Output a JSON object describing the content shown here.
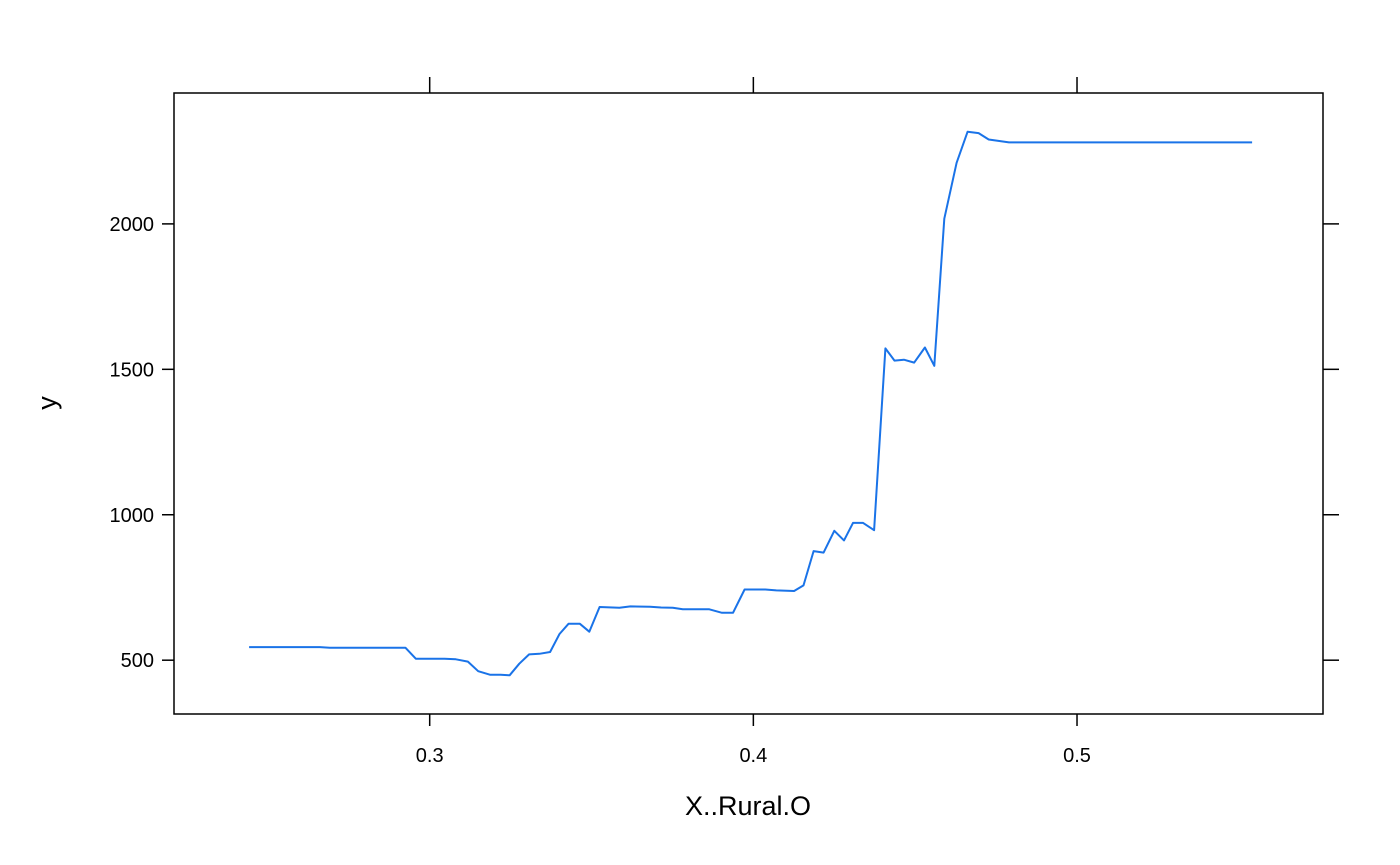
{
  "chart_data": {
    "type": "line",
    "title": "",
    "xlabel": "X..Rural.O",
    "ylabel": "y",
    "xlim": [
      0.221,
      0.576
    ],
    "ylim": [
      315,
      2450
    ],
    "x_ticks": [
      0.3,
      0.4,
      0.5
    ],
    "x_tick_labels": [
      "0.3",
      "0.4",
      "0.5"
    ],
    "y_ticks": [
      500,
      1000,
      1500,
      2000
    ],
    "y_tick_labels": [
      "500",
      "1000",
      "1500",
      "2000"
    ],
    "grid": false,
    "legend": "none",
    "line_color": "#1a73e8",
    "series": [
      {
        "x": [
          0.2442,
          0.2598,
          0.2661,
          0.2691,
          0.2775,
          0.2821,
          0.2925,
          0.2957,
          0.3046,
          0.3081,
          0.3118,
          0.315,
          0.3186,
          0.3219,
          0.3247,
          0.3277,
          0.3307,
          0.3339,
          0.3372,
          0.3401,
          0.3429,
          0.3464,
          0.3493,
          0.3525,
          0.3586,
          0.362,
          0.3681,
          0.3715,
          0.3751,
          0.3782,
          0.3864,
          0.3903,
          0.3937,
          0.3973,
          0.4037,
          0.4071,
          0.4126,
          0.4155,
          0.4186,
          0.4217,
          0.425,
          0.428,
          0.4308,
          0.4339,
          0.4373,
          0.4408,
          0.4436,
          0.4465,
          0.4497,
          0.453,
          0.4559,
          0.459,
          0.4628,
          0.4662,
          0.4696,
          0.4727,
          0.479,
          0.486,
          0.5541
        ],
        "y": [
          545,
          545,
          545,
          543,
          543,
          543,
          543,
          505,
          505,
          503,
          495,
          462,
          450,
          450,
          448,
          488,
          520,
          522,
          528,
          590,
          625,
          625,
          598,
          683,
          680,
          685,
          684,
          681,
          680,
          675,
          675,
          663,
          663,
          743,
          743,
          740,
          738,
          757,
          875,
          870,
          945,
          912,
          972,
          972,
          947,
          1572,
          1530,
          1533,
          1523,
          1575,
          1512,
          2018,
          2210,
          2317,
          2312,
          2290,
          2280,
          2280,
          2280
        ]
      }
    ]
  }
}
